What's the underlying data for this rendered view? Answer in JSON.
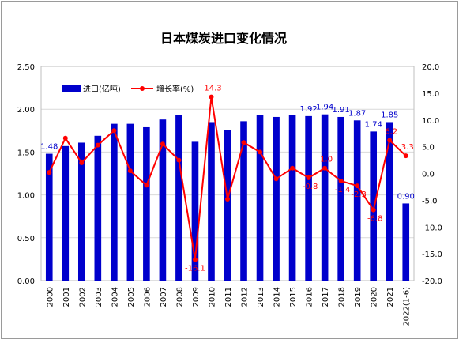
{
  "chart_data": {
    "type": "bar+line",
    "title": "日本煤炭进口变化情况",
    "categories": [
      "2000",
      "2001",
      "2002",
      "2003",
      "2004",
      "2005",
      "2006",
      "2007",
      "2008",
      "2009",
      "2010",
      "2011",
      "2012",
      "2013",
      "2014",
      "2015",
      "2016",
      "2017",
      "2018",
      "2019",
      "2020",
      "2021",
      "2022(1-6)"
    ],
    "series": [
      {
        "name": "进口(亿吨)",
        "type": "bar",
        "axis": "left",
        "color": "#0000CC",
        "values": [
          1.48,
          1.57,
          1.61,
          1.69,
          1.83,
          1.83,
          1.79,
          1.88,
          1.93,
          1.62,
          1.85,
          1.76,
          1.86,
          1.93,
          1.91,
          1.93,
          1.92,
          1.94,
          1.91,
          1.87,
          1.74,
          1.85,
          0.9
        ],
        "labels": [
          {
            "index": 0,
            "text": "1.48"
          },
          {
            "index": 16,
            "text": "1.92"
          },
          {
            "index": 17,
            "text": "1.94"
          },
          {
            "index": 18,
            "text": "1.91"
          },
          {
            "index": 19,
            "text": "1.87"
          },
          {
            "index": 20,
            "text": "1.74"
          },
          {
            "index": 21,
            "text": "1.85"
          },
          {
            "index": 22,
            "text": "0.90"
          }
        ]
      },
      {
        "name": "增长率(%)",
        "type": "line",
        "axis": "right",
        "color": "#FF0000",
        "values": [
          0.2,
          6.6,
          2.0,
          5.3,
          8.0,
          0.5,
          -2.2,
          5.5,
          2.5,
          -16.1,
          14.3,
          -4.8,
          5.8,
          4.0,
          -1.0,
          1.0,
          -0.8,
          1.0,
          -1.4,
          -2.3,
          -6.8,
          6.2,
          3.3
        ],
        "labels": [
          {
            "index": 9,
            "text": "-16.1"
          },
          {
            "index": 10,
            "text": "14.3"
          },
          {
            "index": 16,
            "text": "-0.8"
          },
          {
            "index": 17,
            "text": "1.0"
          },
          {
            "index": 18,
            "text": "-1.4"
          },
          {
            "index": 19,
            "text": "-2.3"
          },
          {
            "index": 20,
            "text": "-6.8"
          },
          {
            "index": 21,
            "text": "6.2"
          },
          {
            "index": 22,
            "text": "3.3"
          }
        ]
      }
    ],
    "y_left": {
      "min": 0,
      "max": 2.5,
      "ticks": [
        "0.00",
        "0.50",
        "1.00",
        "1.50",
        "2.00",
        "2.50"
      ]
    },
    "y_right": {
      "min": -20,
      "max": 20,
      "ticks": [
        "-20.0",
        "-15.0",
        "-10.0",
        "-5.0",
        "0.0",
        "5.0",
        "10.0",
        "15.0",
        "20.0"
      ]
    },
    "grid": true,
    "legend_position": "top-left"
  }
}
